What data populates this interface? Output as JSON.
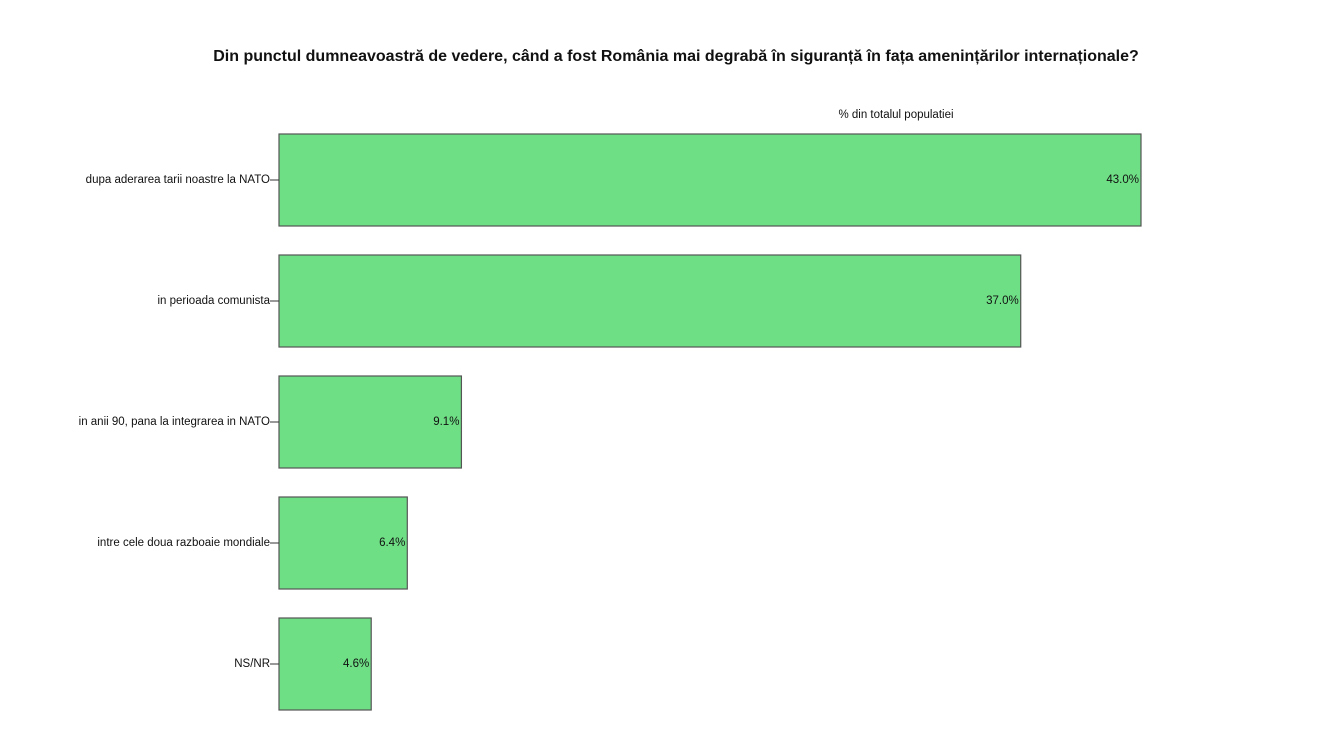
{
  "chart_data": {
    "type": "bar",
    "orientation": "horizontal",
    "title": "Din punctul dumneavoastră de vedere, când a fost România mai degrabă în siguranță în fața amenințărilor internaționale?",
    "x_label": "% din totalul populatiei",
    "categories": [
      "dupa aderarea tarii noastre la NATO",
      "in perioada comunista",
      "in anii 90, pana la integrarea in NATO",
      "intre cele doua razboaie mondiale",
      "NS/NR"
    ],
    "values": [
      43.0,
      37.0,
      9.1,
      6.4,
      4.6
    ],
    "value_labels": [
      "43.0%",
      "37.0%",
      "9.1%",
      "6.4%",
      "4.6%"
    ],
    "color": "#6fdf86"
  }
}
